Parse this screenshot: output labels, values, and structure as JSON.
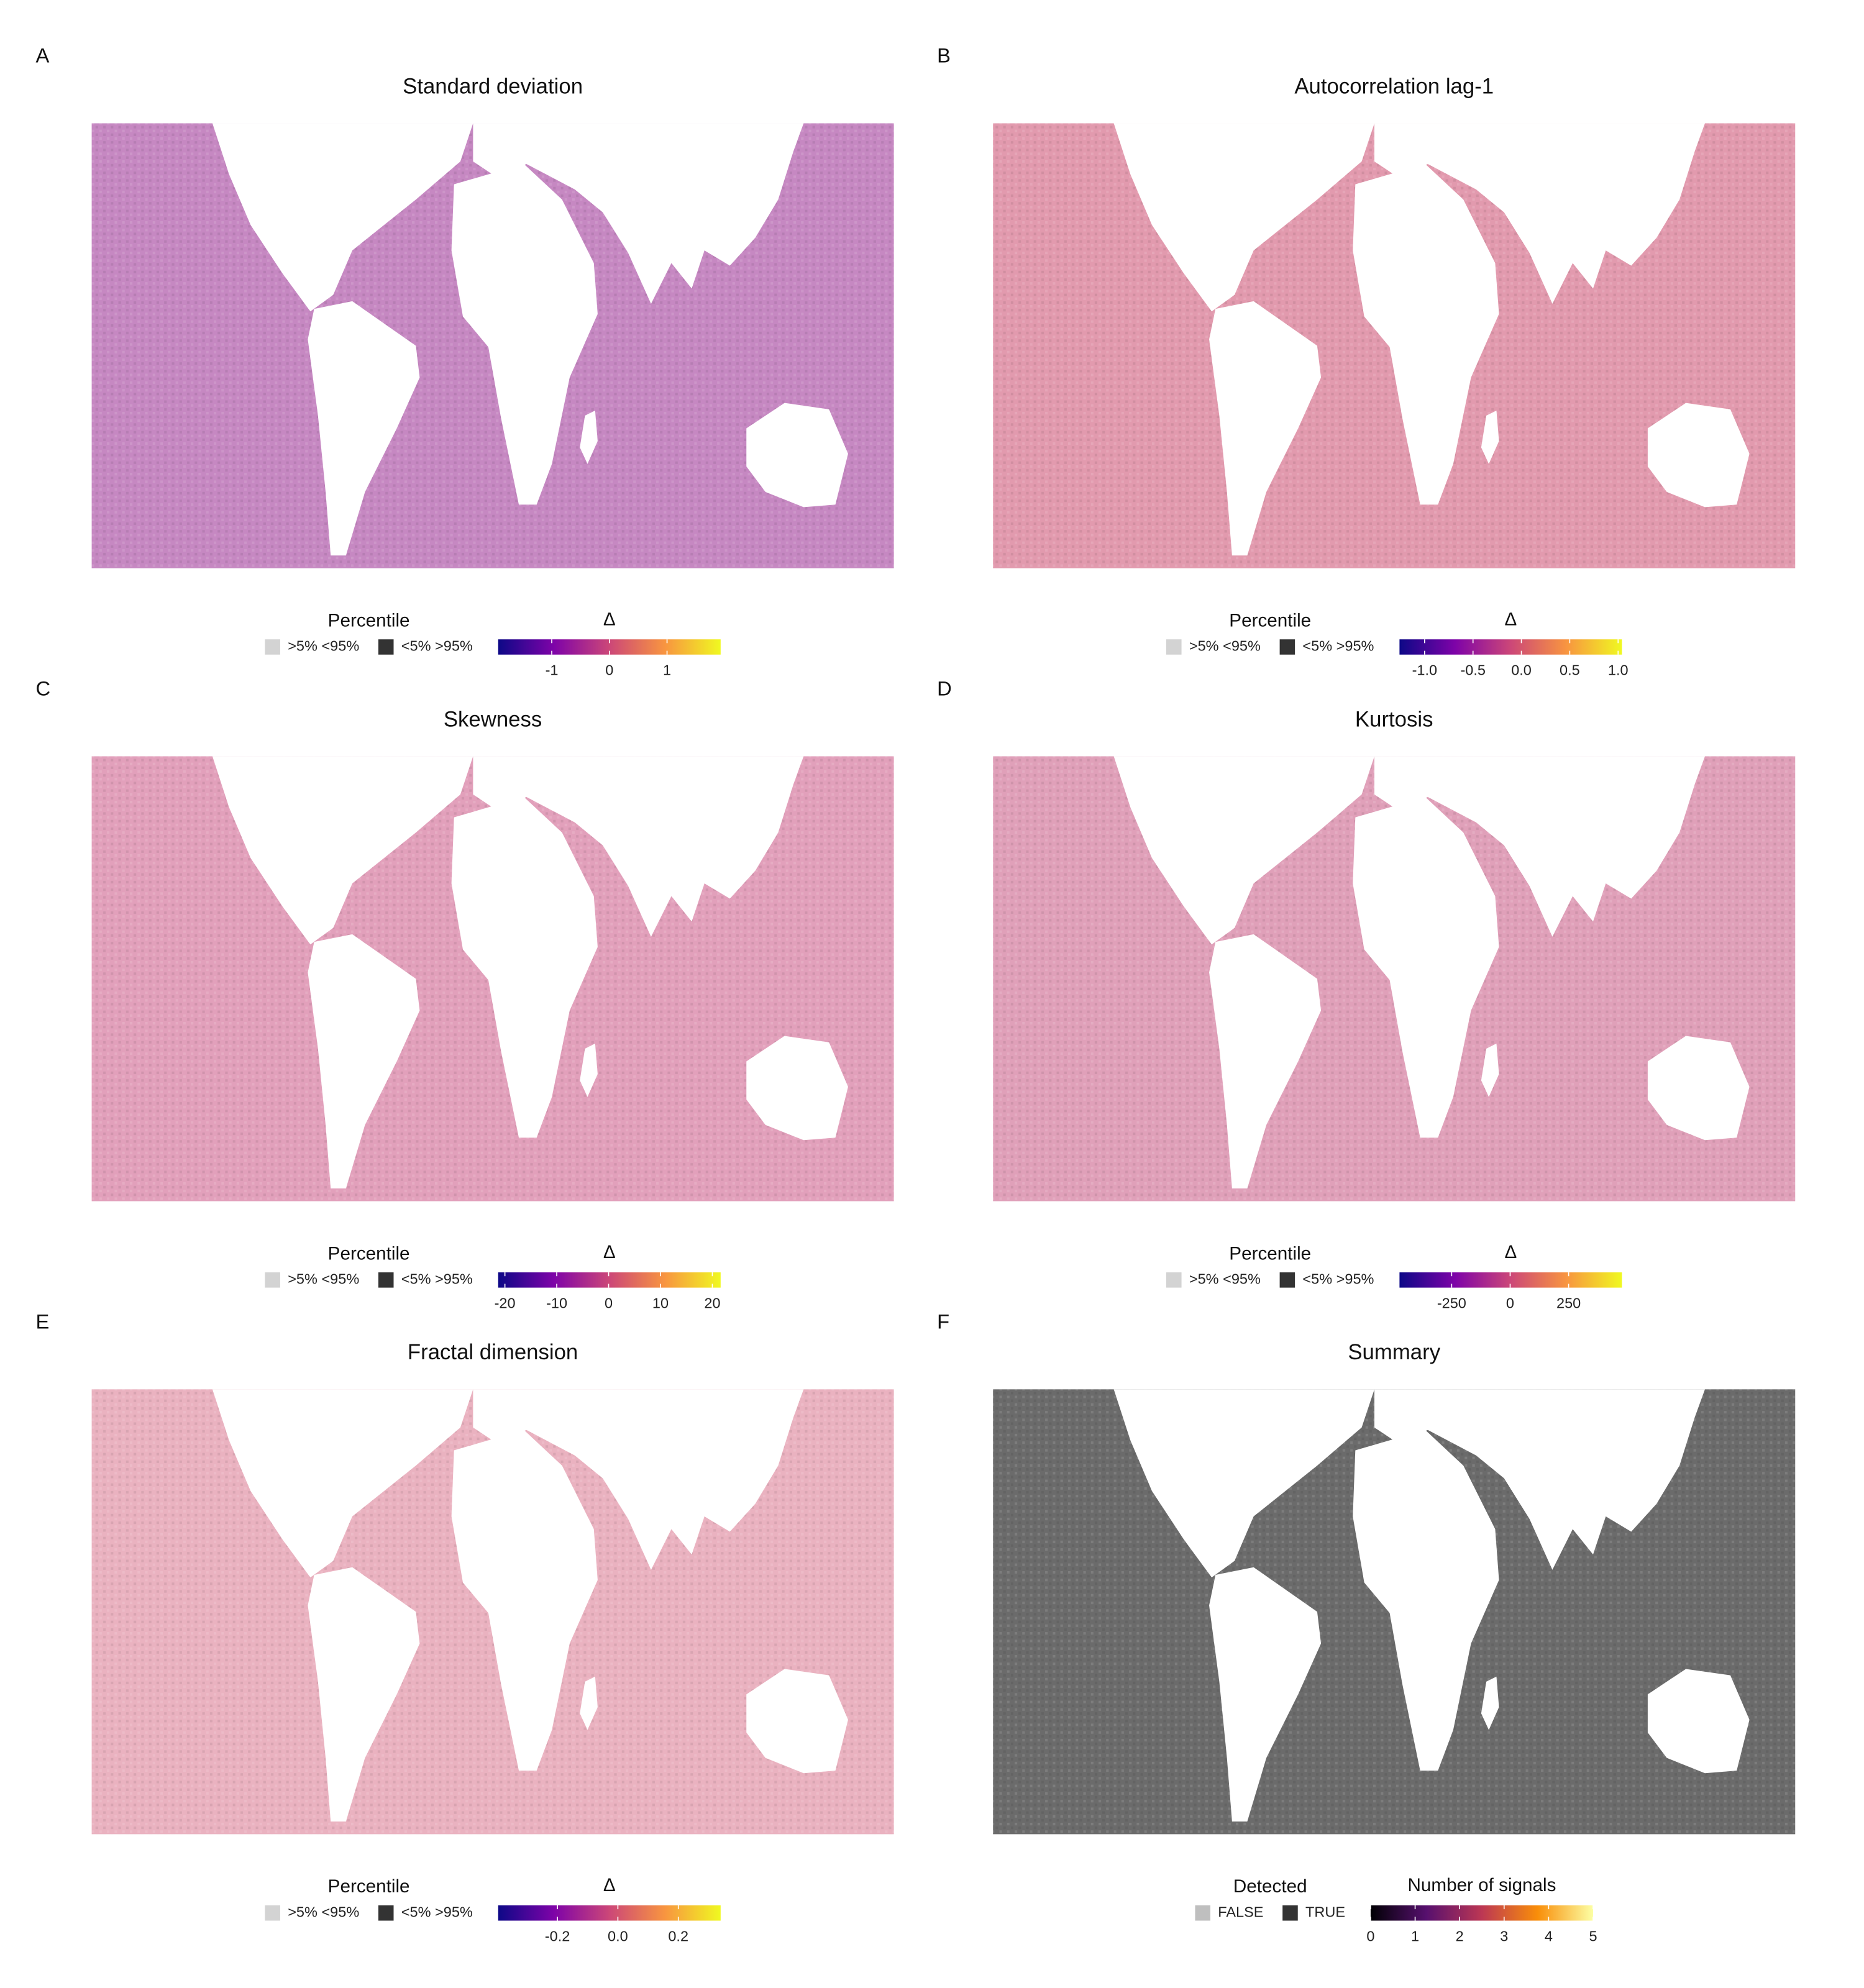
{
  "chart_data": [
    {
      "type": "map",
      "panel": "A",
      "title": "Standard deviation",
      "ocean_color": "#c688c2",
      "legend": {
        "categorical": {
          "title": "Percentile",
          "labels": [
            ">5% <95%",
            "<5% >95%"
          ],
          "colors": [
            "#d3d3d3",
            "#333333"
          ]
        },
        "colorbar": {
          "title": "Δ",
          "lim": [
            -1.93,
            1.93
          ],
          "ticks": [
            -1,
            0,
            1
          ],
          "colors": [
            "#0d0887",
            "#7e03a8",
            "#cc4778",
            "#f89540",
            "#f0f921"
          ]
        }
      }
    },
    {
      "type": "map",
      "panel": "B",
      "title": "Autocorrelation lag-1",
      "ocean_color": "#e29aae",
      "legend": {
        "categorical": {
          "title": "Percentile",
          "labels": [
            ">5% <95%",
            "<5% >95%"
          ],
          "colors": [
            "#d3d3d3",
            "#333333"
          ]
        },
        "colorbar": {
          "title": "Δ",
          "lim": [
            -1.26,
            1.04
          ],
          "ticks": [
            {
              "value": -1,
              "label": "-1.0"
            },
            -0.5,
            {
              "value": 0,
              "label": "0.0"
            },
            0.5,
            {
              "value": 1,
              "label": "1.0"
            }
          ],
          "colors": [
            "#0d0887",
            "#7e03a8",
            "#cc4778",
            "#f89540",
            "#f0f921"
          ]
        }
      }
    },
    {
      "type": "map",
      "panel": "C",
      "title": "Skewness",
      "ocean_color": "#e2a0bb",
      "legend": {
        "categorical": {
          "title": "Percentile",
          "labels": [
            ">5% <95%",
            "<5% >95%"
          ],
          "colors": [
            "#d3d3d3",
            "#333333"
          ]
        },
        "colorbar": {
          "title": "Δ",
          "lim": [
            -21.3,
            21.6
          ],
          "ticks": [
            -20,
            -10,
            0,
            10,
            20
          ],
          "colors": [
            "#0d0887",
            "#7e03a8",
            "#cc4778",
            "#f89540",
            "#f0f921"
          ]
        }
      }
    },
    {
      "type": "map",
      "panel": "D",
      "title": "Kurtosis",
      "ocean_color": "#e0a0b9",
      "legend": {
        "categorical": {
          "title": "Percentile",
          "labels": [
            ">5% <95%",
            "<5% >95%"
          ],
          "colors": [
            "#d3d3d3",
            "#333333"
          ]
        },
        "colorbar": {
          "title": "Δ",
          "lim": [
            -473,
            478
          ],
          "ticks": [
            -250,
            0,
            250
          ],
          "colors": [
            "#0d0887",
            "#7e03a8",
            "#cc4778",
            "#f89540",
            "#f0f921"
          ]
        }
      }
    },
    {
      "type": "map",
      "panel": "E",
      "title": "Fractal dimension",
      "ocean_color": "#eab2c0",
      "legend": {
        "categorical": {
          "title": "Percentile",
          "labels": [
            ">5% <95%",
            "<5% >95%"
          ],
          "colors": [
            "#d3d3d3",
            "#333333"
          ]
        },
        "colorbar": {
          "title": "Δ",
          "lim": [
            -0.396,
            0.34
          ],
          "ticks": [
            -0.2,
            {
              "value": 0,
              "label": "0.0"
            },
            0.2
          ],
          "colors": [
            "#0d0887",
            "#7e03a8",
            "#cc4778",
            "#f89540",
            "#f0f921"
          ]
        }
      }
    },
    {
      "type": "map",
      "panel": "F",
      "title": "Summary",
      "ocean_color": "#6b6b6b",
      "legend": {
        "categorical": {
          "title": "Detected",
          "labels": [
            "FALSE",
            "TRUE"
          ],
          "colors": [
            "#bfbfbf",
            "#333333"
          ]
        },
        "colorbar": {
          "title": "Number of signals",
          "lim": [
            0,
            5
          ],
          "ticks": [
            0,
            1,
            2,
            3,
            4,
            5
          ],
          "colors": [
            "#000004",
            "#57106e",
            "#bc3754",
            "#f98e09",
            "#fcffa4"
          ]
        }
      }
    }
  ]
}
